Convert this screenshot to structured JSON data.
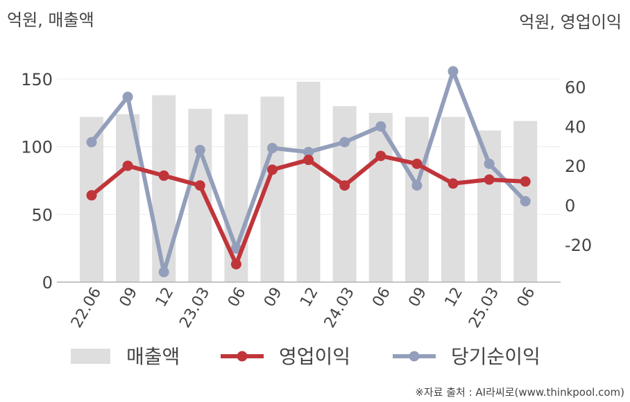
{
  "chart_data": {
    "type": "bar+line",
    "left_axis_label": "억원, 매출액",
    "right_axis_label": "억원, 영업이익",
    "categories": [
      "22.06",
      "09",
      "12",
      "23.03",
      "06",
      "09",
      "12",
      "24.03",
      "06",
      "09",
      "12",
      "25.03",
      "06"
    ],
    "left_axis": {
      "min": 0,
      "max": 150,
      "ticks": [
        "0",
        "50",
        "100",
        "150"
      ]
    },
    "right_axis": {
      "min": -40,
      "max": 60,
      "ticks": [
        "-20",
        "0",
        "20",
        "40",
        "60"
      ]
    },
    "series": [
      {
        "name": "매출액",
        "kind": "bar",
        "axis": "left",
        "color": "#dedede",
        "values": [
          122,
          124,
          138,
          128,
          124,
          137,
          148,
          130,
          125,
          122,
          122,
          112,
          119
        ]
      },
      {
        "name": "영업이익",
        "kind": "line",
        "axis": "right",
        "color": "#c0353a",
        "values": [
          5,
          20,
          15,
          10,
          -30,
          18,
          23,
          10,
          25,
          21,
          11,
          13,
          12
        ]
      },
      {
        "name": "당기순이익",
        "kind": "line",
        "axis": "right",
        "color": "#939fba",
        "values": [
          32,
          55,
          -34,
          28,
          -22,
          29,
          27,
          32,
          40,
          10,
          68,
          21,
          2
        ]
      }
    ],
    "grid": true,
    "legend_position": "bottom"
  },
  "source_text": "※자료 출처 : AI라씨로(www.thinkpool.com)"
}
